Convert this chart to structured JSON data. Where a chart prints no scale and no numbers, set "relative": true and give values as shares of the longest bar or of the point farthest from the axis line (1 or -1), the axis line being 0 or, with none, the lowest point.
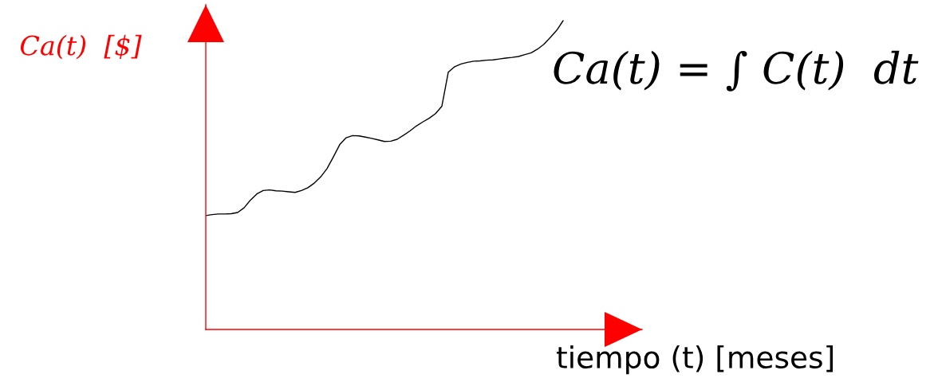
{
  "chart_data": {
    "type": "line",
    "xlabel": "tiempo (t) [meses]",
    "ylabel": "Ca(t)  [$]",
    "annotations": [
      "Ca(t) = ∫ C(t)  dt"
    ],
    "relative": true,
    "categories": [
      null,
      null,
      null,
      null,
      null,
      null,
      null,
      null,
      null,
      null,
      null,
      null,
      null,
      null,
      null,
      null,
      null,
      null,
      null,
      null,
      null,
      null,
      null,
      null,
      null,
      null,
      null,
      null,
      null,
      null,
      null,
      null,
      null,
      null,
      null,
      null,
      null,
      null,
      null,
      null,
      null,
      null,
      null,
      null,
      null,
      null,
      null,
      null,
      null,
      null,
      null,
      null,
      null,
      null,
      null,
      null,
      null
    ],
    "series": [
      {
        "color": "#000000",
        "values": [
          0.369,
          0.372,
          0.374,
          0.374,
          0.375,
          0.379,
          0.394,
          0.419,
          0.439,
          0.45,
          0.452,
          0.449,
          0.448,
          0.446,
          0.444,
          0.45,
          0.459,
          0.474,
          0.494,
          0.521,
          0.559,
          0.599,
          0.621,
          0.628,
          0.627,
          0.623,
          0.619,
          0.614,
          0.609,
          0.61,
          0.616,
          0.629,
          0.643,
          0.659,
          0.672,
          0.684,
          0.699,
          0.723,
          0.833,
          0.851,
          0.86,
          0.865,
          0.869,
          0.87,
          0.872,
          0.873,
          0.876,
          0.879,
          0.881,
          0.884,
          0.89,
          0.896,
          0.908,
          0.924,
          0.946,
          0.969,
          1
        ]
      }
    ]
  }
}
